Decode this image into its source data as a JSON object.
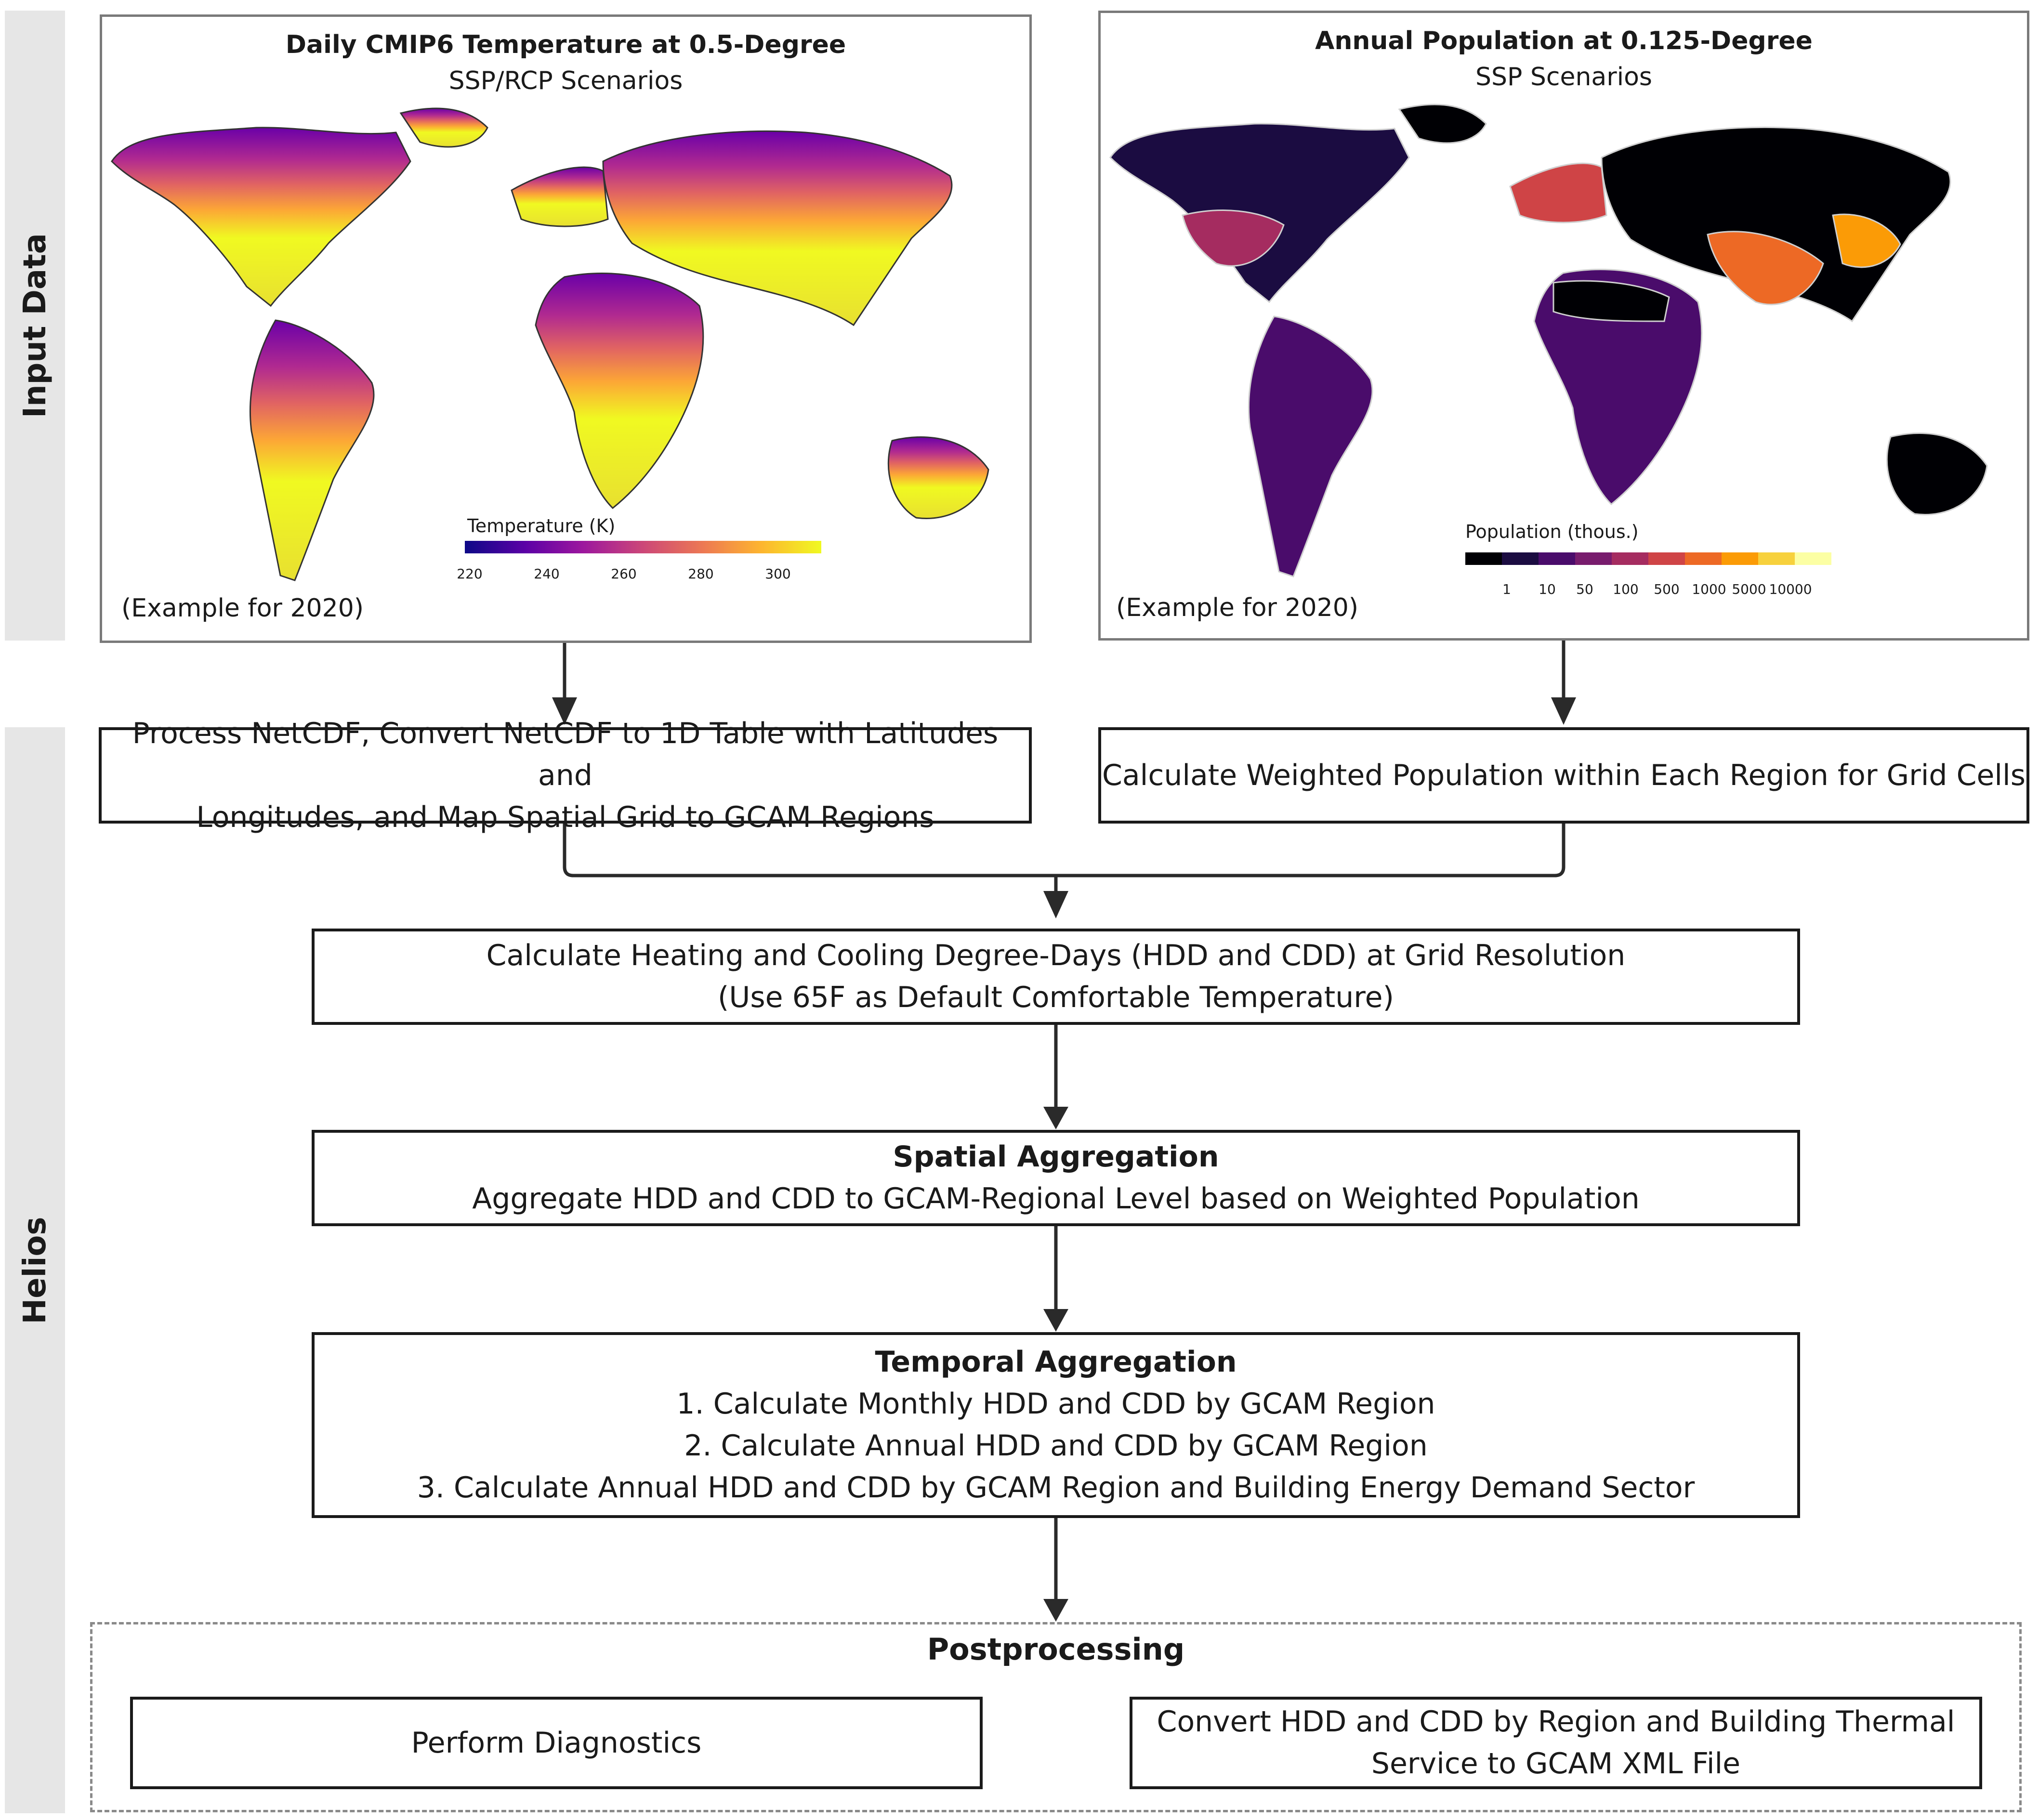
{
  "bands": {
    "input": "Input Data",
    "helios": "Helios"
  },
  "temp_panel": {
    "title": "Daily CMIP6 Temperature at 0.5-Degree",
    "subtitle": "SSP/RCP Scenarios",
    "note": "(Example for 2020)",
    "legend_title": "Temperature (K)",
    "ticks": [
      "220",
      "240",
      "260",
      "280",
      "300"
    ],
    "colors": [
      "#0d0887",
      "#5c01a6",
      "#9c179e",
      "#cc4778",
      "#ed7953",
      "#fdb42f",
      "#f0f921"
    ]
  },
  "pop_panel": {
    "title": "Annual Population at 0.125-Degree",
    "subtitle": "SSP Scenarios",
    "note": "(Example for 2020)",
    "legend_title": "Population (thous.)",
    "ticks": [
      "1",
      "10",
      "50",
      "100",
      "500",
      "1000",
      "5000",
      "10000"
    ],
    "colors": [
      "#000004",
      "#1b0c41",
      "#4a0c6b",
      "#781c6d",
      "#a52c60",
      "#cf4446",
      "#ed6925",
      "#fb9b06",
      "#f7d13d",
      "#fcffa4"
    ]
  },
  "steps": {
    "process_netcdf": {
      "line1": "Process NetCDF, Convert NetCDF to 1D Table with Latitudes and",
      "line2": "Longitudes, and Map Spatial Grid to GCAM Regions"
    },
    "weighted_population": {
      "line1": "Calculate Weighted Population within Each Region for Grid Cells"
    },
    "degree_days": {
      "line1": "Calculate Heating and Cooling Degree-Days (HDD and CDD) at Grid Resolution",
      "line2": "(Use 65F as Default Comfortable Temperature)"
    },
    "spatial": {
      "heading": "Spatial Aggregation",
      "line1": "Aggregate HDD and CDD to GCAM-Regional Level based on Weighted Population"
    },
    "temporal": {
      "heading": "Temporal Aggregation",
      "items": [
        "1. Calculate Monthly HDD and CDD by GCAM Region",
        "2. Calculate Annual HDD and CDD by GCAM Region",
        "3. Calculate Annual HDD and CDD by GCAM Region and Building Energy Demand Sector"
      ]
    },
    "postprocessing": {
      "heading": "Postprocessing",
      "diagnostics": "Perform Diagnostics",
      "convert_line1": "Convert HDD and CDD by Region and Building Thermal",
      "convert_line2": "Service to GCAM XML File"
    }
  }
}
